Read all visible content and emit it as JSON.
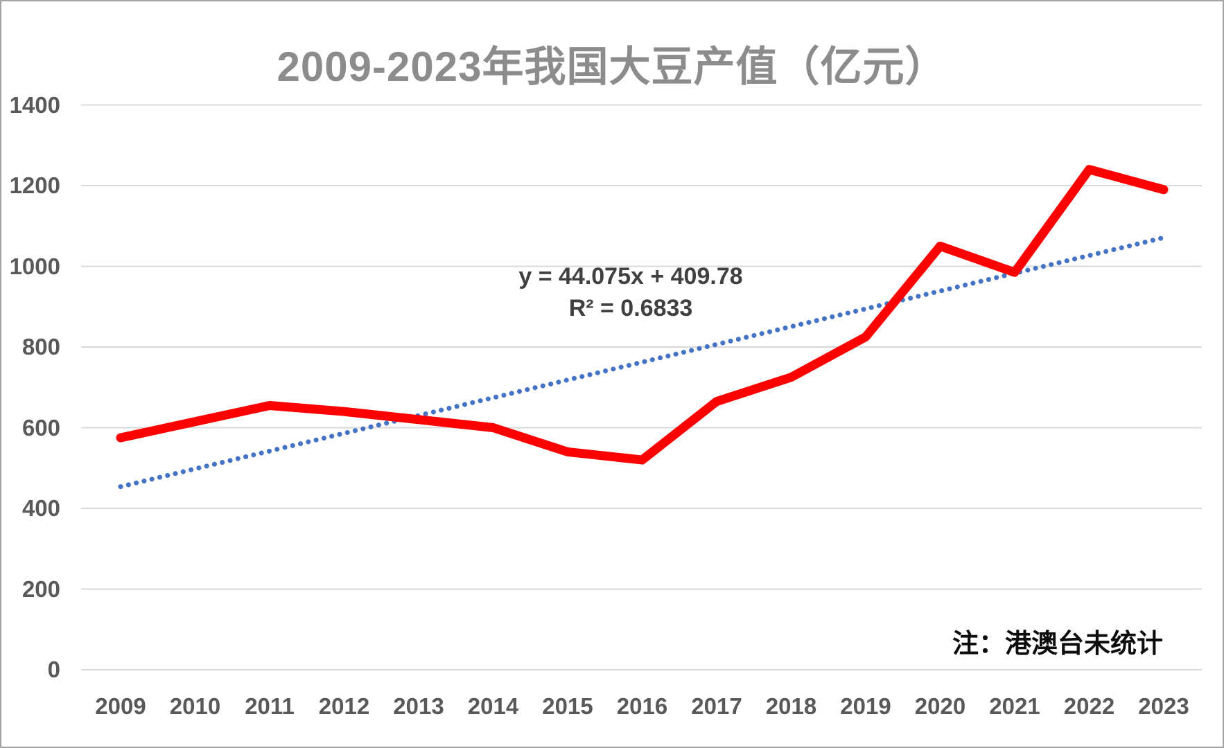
{
  "chart": {
    "title": "2009-2023年我国大豆产值（亿元）",
    "equation_line1": "y = 44.075x + 409.78",
    "equation_line2": "R² = 0.6833",
    "note": "注：港澳台未统计"
  },
  "chart_data": {
    "type": "line",
    "title": "2009-2023年我国大豆产值（亿元）",
    "categories": [
      "2009",
      "2010",
      "2011",
      "2012",
      "2013",
      "2014",
      "2015",
      "2016",
      "2017",
      "2018",
      "2019",
      "2020",
      "2021",
      "2022",
      "2023"
    ],
    "series": [
      {
        "name": "大豆产值（亿元）",
        "color": "#fe0000",
        "values": [
          575,
          615,
          655,
          640,
          620,
          600,
          540,
          520,
          665,
          725,
          825,
          1050,
          985,
          1240,
          1190
        ]
      }
    ],
    "trendline": {
      "type": "linear",
      "slope": 44.075,
      "intercept": 409.78,
      "equation": "y = 44.075x + 409.78",
      "r_squared": 0.6833,
      "color": "#4472c4",
      "style": "dotted"
    },
    "ylim": [
      0,
      1400
    ],
    "yticks": [
      0,
      200,
      400,
      600,
      800,
      1000,
      1200,
      1400
    ],
    "grid": "horizontal",
    "gridline_color": "#d9d9d9",
    "legend": "none",
    "annotation": "注：港澳台未统计"
  }
}
